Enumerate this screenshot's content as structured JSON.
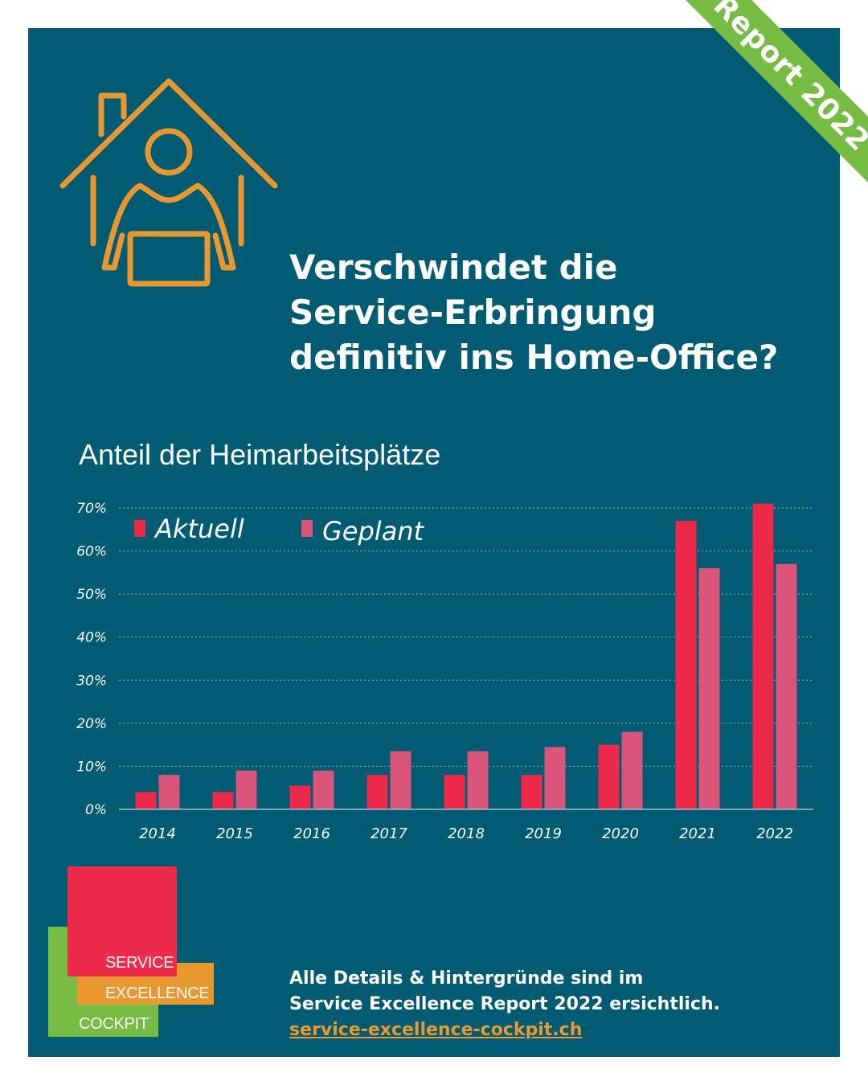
{
  "ribbon": {
    "label": "Report 2022",
    "color": "#76bc43"
  },
  "icon": {
    "name": "home-office-icon",
    "color": "#e8982f"
  },
  "headline": {
    "line1": "Verschwindet die",
    "line2": "Service-Erbringung",
    "line3": "definitiv ins Home-Office?"
  },
  "chart_data": {
    "type": "bar",
    "title": "Anteil der Heimarbeitsplätze",
    "categories": [
      "2014",
      "2015",
      "2016",
      "2017",
      "2018",
      "2019",
      "2020",
      "2021",
      "2022"
    ],
    "series": [
      {
        "name": "Aktuell",
        "color": "#ee2a4a",
        "values": [
          4,
          4,
          5.5,
          8,
          8,
          8,
          15,
          67,
          71
        ]
      },
      {
        "name": "Geplant",
        "color": "#d9557a",
        "values": [
          8,
          9,
          9,
          13.5,
          13.5,
          14.5,
          18,
          56,
          57
        ]
      }
    ],
    "ylim": [
      0,
      70
    ],
    "yticks": [
      "0%",
      "10%",
      "20%",
      "30%",
      "40%",
      "50%",
      "60%",
      "70%"
    ],
    "grid": true,
    "legend_position": "top-left"
  },
  "logo": {
    "line1": "SERVICE",
    "line2": "EXCELLENCE",
    "line3": "COCKPIT",
    "colors": [
      "#ee2a4a",
      "#e8982f",
      "#76bc43"
    ]
  },
  "footer": {
    "line1": "Alle Details & Hintergründe sind im",
    "line2": "Service Excellence Report 2022 ersichtlich.",
    "link": "service-excellence-cockpit.ch"
  }
}
